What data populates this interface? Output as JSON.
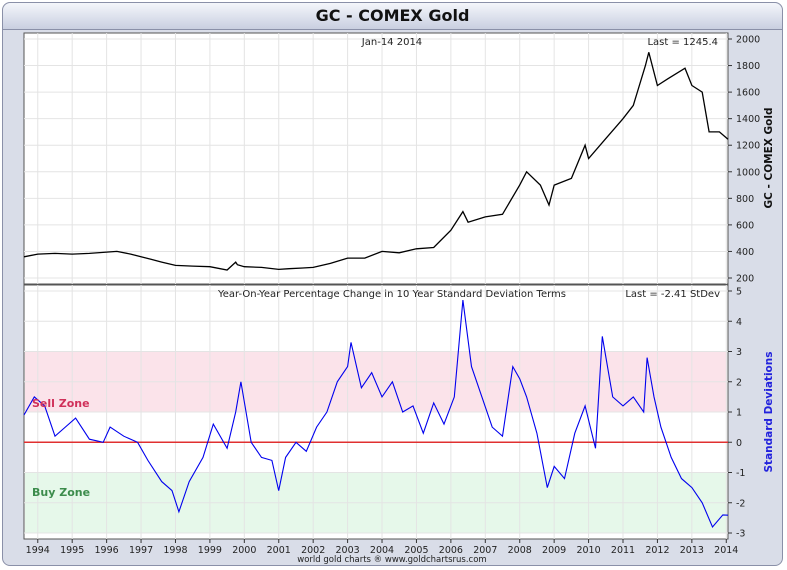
{
  "title": "GC - COMEX Gold",
  "credit": "world gold charts ® www.goldchartsrus.com",
  "colors": {
    "price_line": "#000000",
    "stdev_line": "#0000ee",
    "zero_line": "#e03030",
    "sell_band": "#fbe3ea",
    "buy_band": "#e6f8ea",
    "sell_text": "#d0305a",
    "buy_text": "#3c8c4c",
    "ylabel_lower": "#2222dd"
  },
  "chart_data": [
    {
      "type": "line",
      "title": "",
      "date_label": "Jan-14  2014",
      "last_label": "Last = 1245.4",
      "ylabel": "GC - COMEX Gold",
      "xlim": [
        1993.6,
        2014.05
      ],
      "ylim": [
        200,
        2000
      ],
      "yticks": [
        200,
        400,
        600,
        800,
        1000,
        1200,
        1400,
        1600,
        1800,
        2000
      ],
      "grid": true,
      "series": [
        {
          "x": [
            1993.6,
            1994.0,
            1994.5,
            1995.0,
            1995.5,
            1996.0,
            1996.3,
            1996.7,
            1997.0,
            1997.3,
            1997.6,
            1998.0,
            1998.5,
            1999.0,
            1999.5,
            1999.75,
            1999.8,
            2000.0,
            2000.5,
            2001.0,
            2001.3,
            2001.7,
            2002.0,
            2002.5,
            2003.0,
            2003.5,
            2004.0,
            2004.5,
            2005.0,
            2005.5,
            2006.0,
            2006.35,
            2006.5,
            2007.0,
            2007.5,
            2008.0,
            2008.2,
            2008.6,
            2008.85,
            2009.0,
            2009.5,
            2009.9,
            2010.0,
            2010.5,
            2011.0,
            2011.3,
            2011.65,
            2011.75,
            2012.0,
            2012.3,
            2012.8,
            2013.0,
            2013.3,
            2013.5,
            2013.8,
            2014.05
          ],
          "y": [
            360,
            380,
            385,
            380,
            385,
            395,
            400,
            380,
            360,
            340,
            320,
            295,
            290,
            285,
            260,
            320,
            300,
            285,
            280,
            265,
            270,
            275,
            280,
            310,
            350,
            350,
            400,
            390,
            420,
            430,
            560,
            700,
            620,
            660,
            680,
            900,
            1000,
            900,
            750,
            900,
            950,
            1200,
            1100,
            1250,
            1400,
            1500,
            1800,
            1900,
            1650,
            1700,
            1780,
            1650,
            1600,
            1300,
            1300,
            1245
          ]
        }
      ]
    },
    {
      "type": "line",
      "title": "Year-On-Year Percentage Change in 10 Year Standard Deviation Terms",
      "last_label": "Last = -2.41 StDev",
      "ylabel": "Standard Deviations",
      "xlim": [
        1993.6,
        2014.05
      ],
      "ylim": [
        -3,
        5
      ],
      "yticks": [
        -3,
        -2,
        -1,
        0,
        1,
        2,
        3,
        4,
        5
      ],
      "categories": [
        "1994",
        "1995",
        "1996",
        "1997",
        "1998",
        "1999",
        "2000",
        "2001",
        "2002",
        "2003",
        "2004",
        "2005",
        "2006",
        "2007",
        "2008",
        "2009",
        "2010",
        "2011",
        "2012",
        "2013",
        "2014"
      ],
      "grid": true,
      "zones": [
        {
          "label": "Sell Zone",
          "from": 1,
          "to": 3
        },
        {
          "label": "Buy Zone",
          "from": -3,
          "to": -1
        }
      ],
      "series": [
        {
          "x": [
            1993.6,
            1993.9,
            1994.2,
            1994.5,
            1994.8,
            1995.1,
            1995.5,
            1995.9,
            1996.1,
            1996.5,
            1996.9,
            1997.2,
            1997.6,
            1997.9,
            1998.1,
            1998.4,
            1998.8,
            1999.1,
            1999.5,
            1999.75,
            1999.9,
            2000.2,
            2000.5,
            2000.8,
            2001.0,
            2001.2,
            2001.5,
            2001.8,
            2002.1,
            2002.4,
            2002.7,
            2003.0,
            2003.1,
            2003.4,
            2003.7,
            2004.0,
            2004.3,
            2004.6,
            2004.9,
            2005.2,
            2005.5,
            2005.8,
            2006.1,
            2006.35,
            2006.6,
            2006.9,
            2007.2,
            2007.5,
            2007.8,
            2008.0,
            2008.2,
            2008.5,
            2008.8,
            2009.0,
            2009.3,
            2009.6,
            2009.9,
            2010.2,
            2010.4,
            2010.7,
            2011.0,
            2011.3,
            2011.6,
            2011.7,
            2011.9,
            2012.1,
            2012.4,
            2012.7,
            2013.0,
            2013.3,
            2013.6,
            2013.9,
            2014.05
          ],
          "y": [
            0.9,
            1.5,
            1.2,
            0.2,
            0.5,
            0.8,
            0.1,
            0.0,
            0.5,
            0.2,
            0.0,
            -0.6,
            -1.3,
            -1.6,
            -2.3,
            -1.3,
            -0.5,
            0.6,
            -0.2,
            1.0,
            2.0,
            0.0,
            -0.5,
            -0.6,
            -1.6,
            -0.5,
            0.0,
            -0.3,
            0.5,
            1.0,
            2.0,
            2.5,
            3.3,
            1.8,
            2.3,
            1.5,
            2.0,
            1.0,
            1.2,
            0.3,
            1.3,
            0.6,
            1.5,
            4.7,
            2.5,
            1.5,
            0.5,
            0.2,
            2.5,
            2.1,
            1.5,
            0.3,
            -1.5,
            -0.8,
            -1.2,
            0.3,
            1.2,
            -0.2,
            3.5,
            1.5,
            1.2,
            1.5,
            1.0,
            2.8,
            1.5,
            0.5,
            -0.5,
            -1.2,
            -1.5,
            -2.0,
            -2.8,
            -2.4,
            -2.41
          ]
        }
      ]
    }
  ]
}
